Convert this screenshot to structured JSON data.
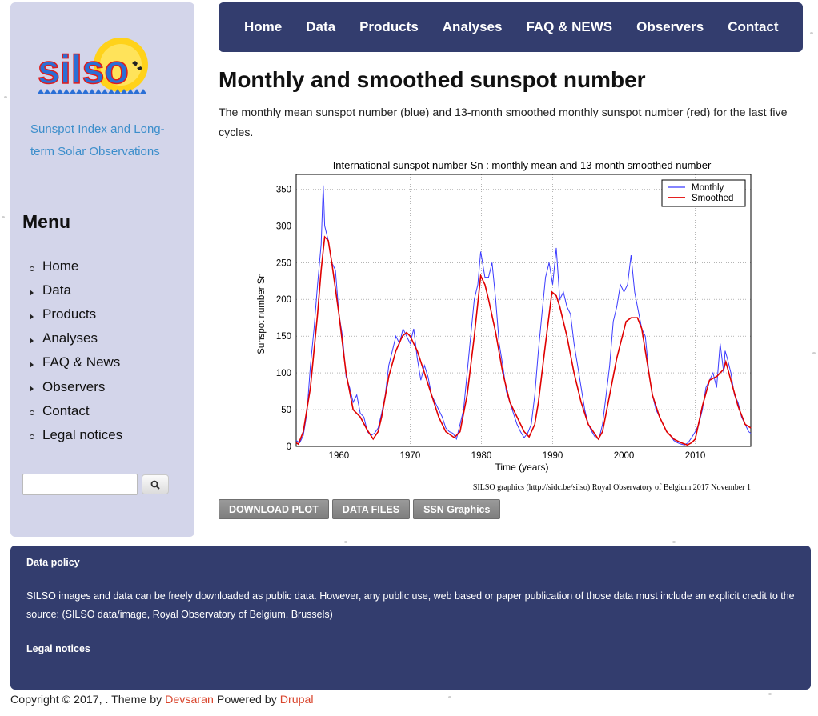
{
  "site": {
    "tagline": "Sunspot Index and Long-term Solar Observations",
    "logo_icon": "silso-logo-icon"
  },
  "topnav": [
    {
      "label": "Home"
    },
    {
      "label": "Data"
    },
    {
      "label": "Products"
    },
    {
      "label": "Analyses"
    },
    {
      "label": "FAQ & NEWS"
    },
    {
      "label": "Observers"
    },
    {
      "label": "Contact"
    }
  ],
  "sidebar": {
    "menu_title": "Menu",
    "items": [
      {
        "label": "Home",
        "bullet": "circle"
      },
      {
        "label": "Data",
        "bullet": "triangle"
      },
      {
        "label": "Products",
        "bullet": "triangle"
      },
      {
        "label": "Analyses",
        "bullet": "triangle"
      },
      {
        "label": "FAQ & News",
        "bullet": "triangle"
      },
      {
        "label": "Observers",
        "bullet": "triangle"
      },
      {
        "label": "Contact",
        "bullet": "circle"
      },
      {
        "label": "Legal notices",
        "bullet": "circle"
      }
    ],
    "search": {
      "value": "",
      "placeholder": "",
      "icon": "search-icon"
    }
  },
  "main": {
    "title": "Monthly and smoothed sunspot number",
    "intro": "The monthly mean sunspot number (blue) and 13-month smoothed monthly sunspot number (red) for the last five cycles.",
    "buttons": [
      {
        "label": "DOWNLOAD PLOT"
      },
      {
        "label": "DATA FILES"
      },
      {
        "label": "SSN Graphics"
      }
    ]
  },
  "chart_data": {
    "type": "line",
    "title": "International sunspot number Sn : monthly mean and 13-month smoothed number",
    "xlabel": "Time (years)",
    "ylabel": "Sunspot number Sn",
    "xlim": [
      1954,
      2017.8
    ],
    "ylim": [
      0,
      370
    ],
    "xticks": [
      "1960",
      "1970",
      "1980",
      "1990",
      "2000",
      "2010"
    ],
    "yticks": [
      "0",
      "50",
      "100",
      "150",
      "200",
      "250",
      "300",
      "350"
    ],
    "grid": true,
    "legend": "top-right",
    "credit": "SILSO graphics (http://sidc.be/silso)  Royal Observatory of Belgium  2017 November 1",
    "colors": {
      "monthly": "#3b3bff",
      "smoothed": "#e00000"
    },
    "series": [
      {
        "name": "Monthly",
        "x": [
          1954.0,
          1954.5,
          1955.0,
          1955.5,
          1956.0,
          1956.5,
          1957.0,
          1957.5,
          1957.8,
          1958.0,
          1958.5,
          1959.0,
          1959.5,
          1960.0,
          1960.5,
          1961.0,
          1961.5,
          1962.0,
          1962.5,
          1963.0,
          1963.5,
          1964.0,
          1964.5,
          1965.0,
          1965.5,
          1966.0,
          1966.5,
          1967.0,
          1967.5,
          1968.0,
          1968.5,
          1969.0,
          1969.5,
          1970.0,
          1970.5,
          1971.0,
          1971.5,
          1972.0,
          1972.5,
          1973.0,
          1973.5,
          1974.0,
          1974.5,
          1975.0,
          1975.5,
          1976.0,
          1976.5,
          1977.0,
          1977.5,
          1978.0,
          1978.5,
          1979.0,
          1979.5,
          1979.9,
          1980.5,
          1981.0,
          1981.5,
          1982.0,
          1982.5,
          1983.0,
          1983.5,
          1984.0,
          1984.5,
          1985.0,
          1985.5,
          1986.0,
          1986.5,
          1987.0,
          1987.5,
          1988.0,
          1988.5,
          1989.0,
          1989.5,
          1990.0,
          1990.5,
          1991.0,
          1991.5,
          1992.0,
          1992.5,
          1993.0,
          1993.5,
          1994.0,
          1994.5,
          1995.0,
          1995.5,
          1996.0,
          1996.5,
          1997.0,
          1997.5,
          1998.0,
          1998.5,
          1999.0,
          1999.5,
          2000.0,
          2000.5,
          2001.0,
          2001.5,
          2001.9,
          2002.5,
          2003.0,
          2003.5,
          2004.0,
          2004.5,
          2005.0,
          2005.5,
          2006.0,
          2006.5,
          2007.0,
          2007.5,
          2008.0,
          2008.5,
          2009.0,
          2009.5,
          2010.0,
          2010.5,
          2011.0,
          2011.5,
          2012.0,
          2012.5,
          2013.0,
          2013.5,
          2014.0,
          2014.2,
          2014.5,
          2015.0,
          2015.5,
          2016.0,
          2016.5,
          2017.0,
          2017.5,
          2017.8
        ],
        "values": [
          8,
          5,
          15,
          45,
          110,
          160,
          220,
          275,
          355,
          300,
          280,
          250,
          240,
          180,
          150,
          95,
          80,
          60,
          70,
          45,
          40,
          20,
          15,
          18,
          25,
          45,
          70,
          110,
          130,
          150,
          140,
          160,
          150,
          140,
          160,
          120,
          90,
          110,
          95,
          70,
          60,
          50,
          40,
          25,
          20,
          18,
          10,
          30,
          50,
          100,
          150,
          200,
          220,
          265,
          230,
          230,
          250,
          200,
          140,
          110,
          75,
          60,
          45,
          30,
          20,
          12,
          18,
          30,
          70,
          130,
          180,
          230,
          250,
          220,
          270,
          200,
          210,
          190,
          180,
          140,
          110,
          80,
          50,
          30,
          20,
          12,
          10,
          30,
          70,
          110,
          170,
          190,
          220,
          210,
          220,
          260,
          210,
          190,
          160,
          150,
          100,
          70,
          50,
          40,
          30,
          20,
          15,
          8,
          5,
          3,
          2,
          5,
          12,
          20,
          30,
          50,
          80,
          90,
          100,
          80,
          140,
          100,
          130,
          120,
          100,
          70,
          60,
          40,
          30,
          20,
          18
        ]
      },
      {
        "name": "Smoothed",
        "x": [
          1954.0,
          1954.3,
          1955.0,
          1956.0,
          1957.0,
          1957.5,
          1958.0,
          1958.5,
          1959.0,
          1960.0,
          1961.0,
          1962.0,
          1963.0,
          1964.0,
          1964.8,
          1965.5,
          1966.0,
          1967.0,
          1968.0,
          1968.9,
          1969.5,
          1970.0,
          1971.0,
          1972.0,
          1973.0,
          1974.0,
          1975.0,
          1976.2,
          1977.0,
          1978.0,
          1979.0,
          1979.9,
          1980.5,
          1981.0,
          1982.0,
          1983.0,
          1984.0,
          1985.0,
          1986.0,
          1986.7,
          1987.5,
          1988.0,
          1989.0,
          1989.9,
          1990.5,
          1991.0,
          1992.0,
          1993.0,
          1994.0,
          1995.0,
          1996.4,
          1997.0,
          1998.0,
          1999.0,
          2000.3,
          2001.0,
          2001.9,
          2002.5,
          2003.0,
          2004.0,
          2005.0,
          2006.0,
          2007.0,
          2008.0,
          2008.9,
          2009.5,
          2010.0,
          2011.0,
          2012.0,
          2013.0,
          2014.0,
          2014.3,
          2015.0,
          2016.0,
          2017.0,
          2017.8
        ],
        "values": [
          5,
          3,
          20,
          80,
          180,
          240,
          285,
          280,
          250,
          180,
          100,
          50,
          40,
          22,
          10,
          20,
          40,
          95,
          130,
          150,
          155,
          150,
          130,
          100,
          70,
          40,
          20,
          12,
          20,
          70,
          150,
          232,
          220,
          200,
          155,
          100,
          60,
          40,
          20,
          13,
          30,
          60,
          140,
          210,
          205,
          190,
          150,
          100,
          60,
          30,
          10,
          20,
          70,
          120,
          170,
          175,
          175,
          160,
          130,
          70,
          40,
          20,
          10,
          5,
          2,
          5,
          10,
          55,
          90,
          95,
          105,
          115,
          90,
          55,
          30,
          25
        ]
      }
    ]
  },
  "footer": {
    "data_policy_title": "Data policy",
    "data_policy_text": "SILSO images and data can be freely downloaded as public data. However, any public use, web based or paper publication of those data must include an explicit credit to the source: (SILSO data/image, Royal Observatory of Belgium, Brussels)",
    "legal_title": "Legal notices",
    "copyright_prefix": "Copyright © 2017, . Theme by",
    "theme_link": "Devsaran",
    "powered_text": "Powered by",
    "powered_link": "Drupal"
  }
}
